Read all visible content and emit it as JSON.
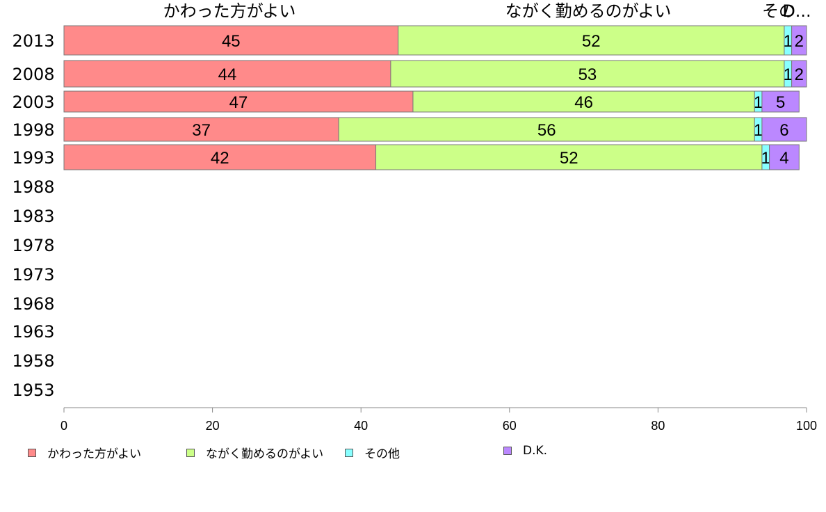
{
  "chart_data": {
    "type": "bar",
    "orientation": "horizontal",
    "stacked": true,
    "categories": [
      "2013",
      "2008",
      "2003",
      "1998",
      "1993",
      "1988",
      "1983",
      "1978",
      "1973",
      "1968",
      "1963",
      "1958",
      "1953"
    ],
    "series": [
      {
        "name": "かわった方がよい",
        "color": "#ff8a8a",
        "values": [
          45,
          44,
          47,
          37,
          42,
          null,
          null,
          null,
          null,
          null,
          null,
          null,
          null
        ]
      },
      {
        "name": "ながく勤めるのがよい",
        "color": "#ccff88",
        "values": [
          52,
          53,
          46,
          56,
          52,
          null,
          null,
          null,
          null,
          null,
          null,
          null,
          null
        ]
      },
      {
        "name": "その他",
        "color": "#88ffff",
        "values": [
          1,
          1,
          1,
          1,
          1,
          null,
          null,
          null,
          null,
          null,
          null,
          null,
          null
        ]
      },
      {
        "name": "D.K.",
        "color": "#bb88ff",
        "values": [
          2,
          2,
          5,
          6,
          4,
          null,
          null,
          null,
          null,
          null,
          null,
          null,
          null
        ]
      }
    ],
    "column_headers": [
      "かわった方がよい",
      "ながく勤めるのがよい",
      "その他",
      "D.K."
    ],
    "column_headers_display": [
      "かわった方がよい",
      "ながく勤めるのがよい",
      "その",
      "D..."
    ],
    "xlim": [
      0,
      100
    ],
    "x_ticks": [
      0,
      20,
      40,
      60,
      80,
      100
    ],
    "grid": false,
    "legend_position": "bottom"
  }
}
